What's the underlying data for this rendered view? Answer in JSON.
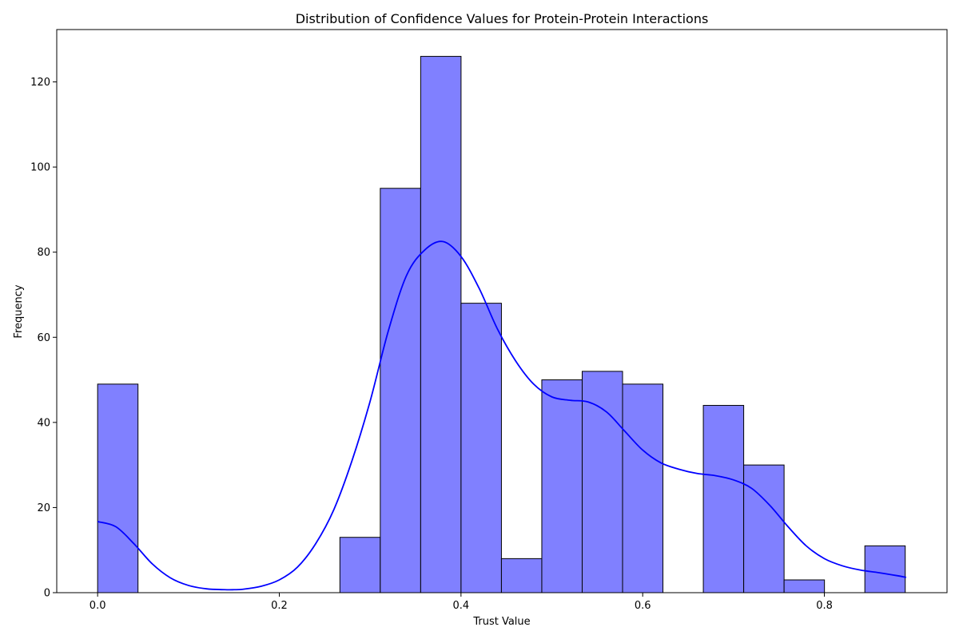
{
  "chart_data": {
    "type": "bar",
    "title": "Distribution of Confidence Values for Protein-Protein Interactions",
    "xlabel": "Trust Value",
    "ylabel": "Frequency",
    "xlim": [
      -0.045,
      0.935
    ],
    "ylim": [
      0,
      132.3
    ],
    "xticks": [
      0.0,
      0.2,
      0.4,
      0.6,
      0.8
    ],
    "xtick_labels": [
      "0.0",
      "0.2",
      "0.4",
      "0.6",
      "0.8"
    ],
    "yticks": [
      0,
      20,
      40,
      60,
      80,
      100,
      120
    ],
    "ytick_labels": [
      "0",
      "20",
      "40",
      "60",
      "80",
      "100",
      "120"
    ],
    "grid": false,
    "bar_color": "#8080ff",
    "bar_edge_color": "#000000",
    "kde_color": "#0000ff",
    "bins": {
      "start": 0.0,
      "width": 0.04445,
      "counts": [
        49,
        0,
        0,
        0,
        0,
        0,
        13,
        95,
        126,
        68,
        8,
        50,
        52,
        49,
        0,
        44,
        30,
        3,
        0,
        11
      ]
    },
    "kde": {
      "x": [
        0.0,
        0.02,
        0.04,
        0.06,
        0.08,
        0.1,
        0.12,
        0.14,
        0.15,
        0.16,
        0.18,
        0.2,
        0.22,
        0.24,
        0.26,
        0.28,
        0.3,
        0.32,
        0.34,
        0.36,
        0.38,
        0.4,
        0.42,
        0.44,
        0.46,
        0.48,
        0.5,
        0.52,
        0.54,
        0.56,
        0.58,
        0.6,
        0.62,
        0.64,
        0.66,
        0.68,
        0.7,
        0.72,
        0.74,
        0.76,
        0.78,
        0.8,
        0.82,
        0.84,
        0.86,
        0.88,
        0.89
      ],
      "y": [
        16.7,
        15.5,
        11.5,
        6.8,
        3.5,
        1.7,
        0.9,
        0.7,
        0.7,
        0.8,
        1.5,
        3.0,
        6.0,
        11.5,
        19.5,
        31.0,
        45.0,
        61.5,
        74.5,
        80.5,
        82.5,
        79.0,
        71.5,
        62.0,
        54.5,
        49.0,
        46.0,
        45.2,
        44.8,
        42.5,
        38.0,
        33.5,
        30.5,
        29.0,
        28.0,
        27.5,
        26.5,
        24.5,
        20.5,
        15.5,
        11.0,
        8.0,
        6.3,
        5.3,
        4.7,
        4.0,
        3.6
      ]
    }
  }
}
